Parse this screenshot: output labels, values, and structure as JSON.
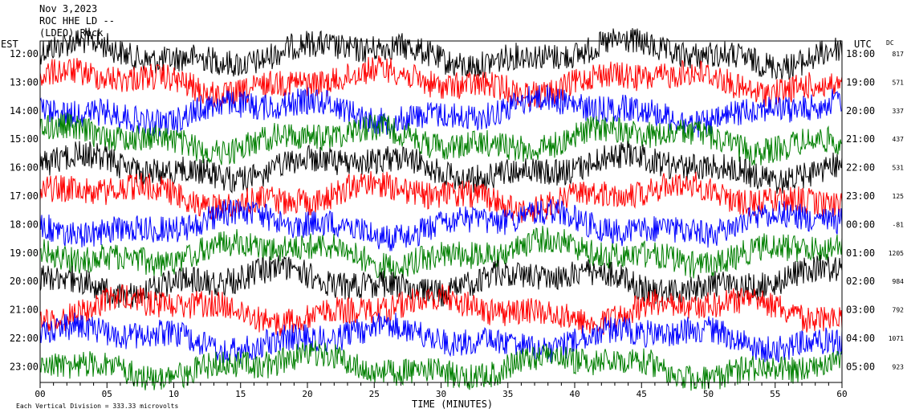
{
  "header": {
    "date": "Nov 3,2023",
    "station": "ROC HHE LD --",
    "network": "(LDEO) Rock"
  },
  "left_axis_title": "EST",
  "right_axis_title": "UTC",
  "dc_title": "DC",
  "footer_note": "Each Vertical Division = 333.33 microvolts",
  "chart_data": {
    "type": "line",
    "title": "",
    "xlabel": "TIME (MINUTES)",
    "xlim": [
      0,
      60
    ],
    "x_ticks": [
      "00",
      "05",
      "10",
      "15",
      "20",
      "25",
      "30",
      "35",
      "40",
      "45",
      "50",
      "55",
      "60"
    ],
    "rows": [
      {
        "est": "12:00",
        "utc": "18:00",
        "dc": "817",
        "color": "#000000"
      },
      {
        "est": "13:00",
        "utc": "19:00",
        "dc": "571",
        "color": "#ff0000"
      },
      {
        "est": "14:00",
        "utc": "20:00",
        "dc": "337",
        "color": "#0000ff"
      },
      {
        "est": "15:00",
        "utc": "21:00",
        "dc": "437",
        "color": "#007f00"
      },
      {
        "est": "16:00",
        "utc": "22:00",
        "dc": "531",
        "color": "#000000"
      },
      {
        "est": "17:00",
        "utc": "23:00",
        "dc": "125",
        "color": "#ff0000"
      },
      {
        "est": "18:00",
        "utc": "00:00",
        "dc": "-81",
        "color": "#0000ff"
      },
      {
        "est": "19:00",
        "utc": "01:00",
        "dc": "1205",
        "color": "#007f00"
      },
      {
        "est": "20:00",
        "utc": "02:00",
        "dc": "984",
        "color": "#000000"
      },
      {
        "est": "21:00",
        "utc": "03:00",
        "dc": "792",
        "color": "#ff0000"
      },
      {
        "est": "22:00",
        "utc": "04:00",
        "dc": "1071",
        "color": "#0000ff"
      },
      {
        "est": "23:00",
        "utc": "05:00",
        "dc": "923",
        "color": "#007f00"
      }
    ]
  }
}
